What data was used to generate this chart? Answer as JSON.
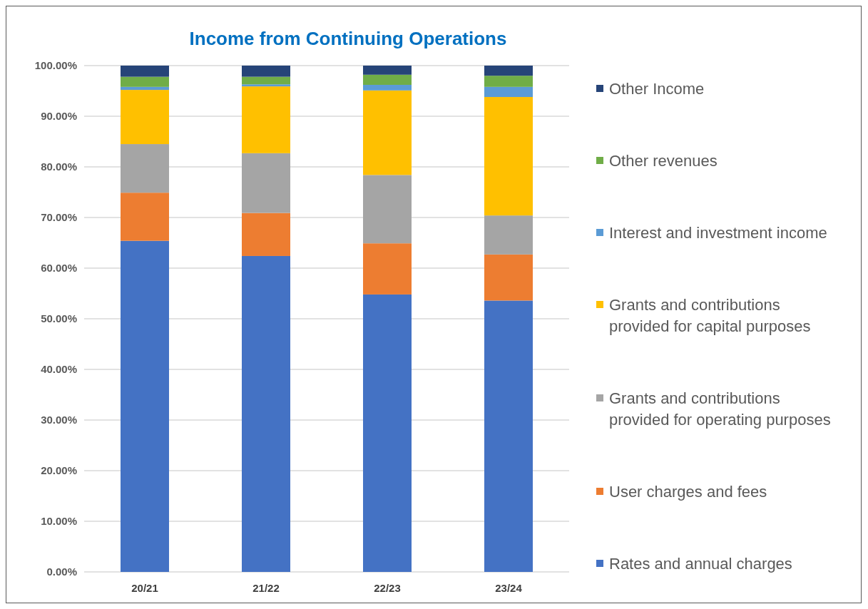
{
  "chart_data": {
    "type": "bar",
    "title": "Income from Continuing Operations",
    "stacked": true,
    "categories": [
      "20/21",
      "21/22",
      "22/23",
      "23/24"
    ],
    "series": [
      {
        "name": "Rates and annual charges",
        "color": "#4472c4",
        "values": [
          65.4,
          62.4,
          54.8,
          53.6
        ]
      },
      {
        "name": "User charges and fees",
        "color": "#ed7d31",
        "values": [
          9.5,
          8.5,
          10.1,
          9.1
        ]
      },
      {
        "name": "Grants and contributions provided for operating purposes",
        "color": "#a5a5a5",
        "values": [
          9.6,
          11.8,
          13.5,
          7.7
        ]
      },
      {
        "name": "Grants and contributions provided for capital purposes",
        "color": "#ffc000",
        "values": [
          10.7,
          13.2,
          16.7,
          23.4
        ]
      },
      {
        "name": "Interest and investment income",
        "color": "#5b9bd5",
        "values": [
          0.6,
          0.4,
          1.1,
          2.0
        ]
      },
      {
        "name": "Other revenues",
        "color": "#70ad47",
        "values": [
          2.0,
          1.5,
          2.0,
          2.2
        ]
      },
      {
        "name": "Other Income",
        "color": "#264478",
        "values": [
          2.2,
          2.2,
          1.8,
          2.0
        ]
      }
    ],
    "ylim": [
      0,
      100
    ],
    "yticks": [
      {
        "value": 0,
        "label": "0.00%"
      },
      {
        "value": 10,
        "label": "10.00%"
      },
      {
        "value": 20,
        "label": "20.00%"
      },
      {
        "value": 30,
        "label": "30.00%"
      },
      {
        "value": 40,
        "label": "40.00%"
      },
      {
        "value": 50,
        "label": "50.00%"
      },
      {
        "value": 60,
        "label": "60.00%"
      },
      {
        "value": 70,
        "label": "70.00%"
      },
      {
        "value": 80,
        "label": "80.00%"
      },
      {
        "value": 90,
        "label": "90.00%"
      },
      {
        "value": 100,
        "label": "100.00%"
      }
    ],
    "grid": "y",
    "legend": "right"
  }
}
